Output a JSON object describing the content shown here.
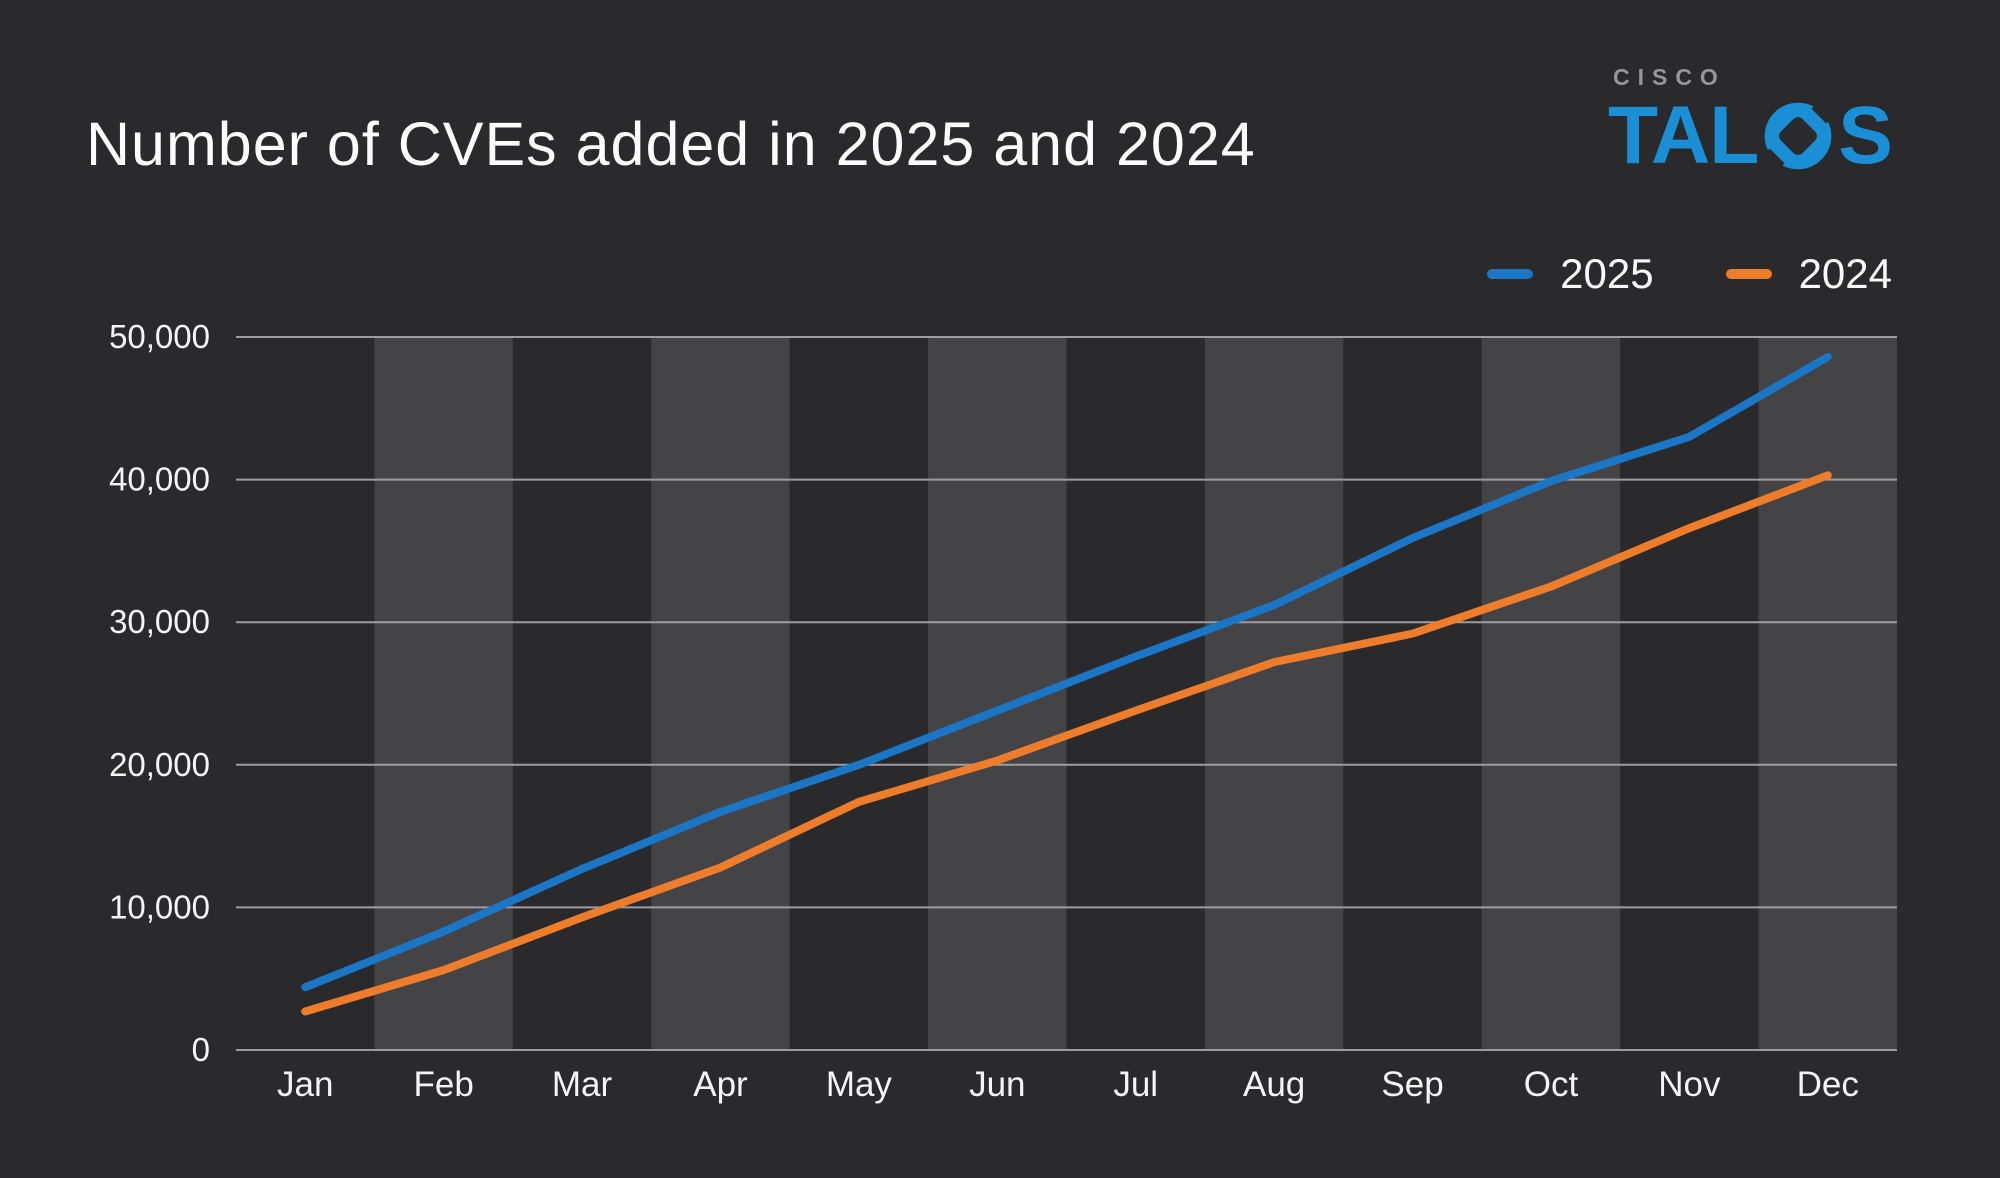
{
  "header": {
    "title": "Number of CVEs added in 2025 and 2024"
  },
  "logo": {
    "cisco": "CISCO",
    "talos": "TALOS"
  },
  "legend": {
    "items": [
      {
        "label": "2025",
        "color": "#1b76c5"
      },
      {
        "label": "2024",
        "color": "#ee7d2b"
      }
    ]
  },
  "colors": {
    "background": "#2a292c",
    "band_light": "#444346",
    "gridline": "#9d9da0",
    "axis_text": "#f5f5f5",
    "title_text": "#fcfcfc",
    "cisco_gray": "#96959a",
    "talos_blue": "#1b8fd6",
    "series_2025": "#1b76c5",
    "series_2024": "#ee7d2b"
  },
  "chart_data": {
    "type": "line",
    "title": "Number of CVEs added in 2025 and 2024",
    "categories": [
      "Jan",
      "Feb",
      "Mar",
      "Apr",
      "May",
      "Jun",
      "Jul",
      "Aug",
      "Sep",
      "Oct",
      "Nov",
      "Dec"
    ],
    "series": [
      {
        "name": "2025",
        "color": "#1b76c5",
        "values": [
          4400,
          8300,
          12700,
          16700,
          20000,
          23800,
          27600,
          31200,
          35900,
          39900,
          43000,
          48600
        ]
      },
      {
        "name": "2024",
        "color": "#ee7d2b",
        "values": [
          2700,
          5600,
          9300,
          12800,
          17400,
          20300,
          23800,
          27200,
          29200,
          32500,
          36600,
          40300
        ]
      }
    ],
    "xlabel": "",
    "ylabel": "",
    "ylim": [
      0,
      50000
    ],
    "ytick_step": 10000,
    "ytick_labels": [
      "0",
      "10,000",
      "20,000",
      "30,000",
      "40,000",
      "50,000"
    ],
    "grid": "horizontal",
    "alternating_month_bands": true,
    "legend_position": "top-right",
    "line_width": 8,
    "markers": false
  }
}
